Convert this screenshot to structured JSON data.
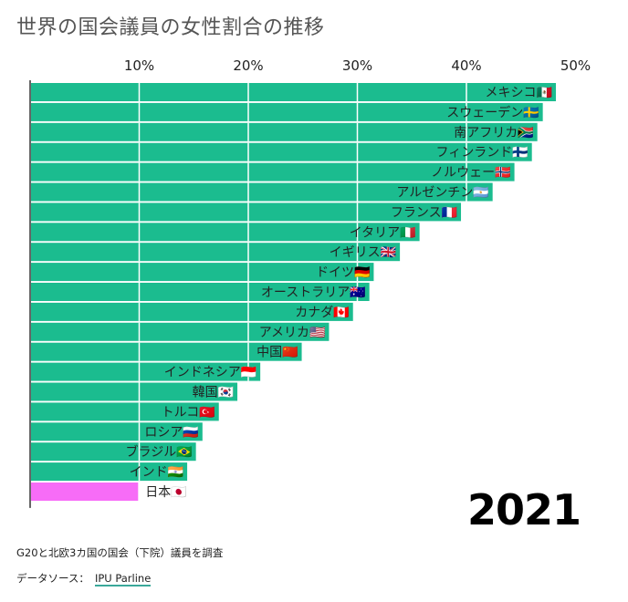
{
  "chart_data": {
    "type": "bar",
    "orientation": "horizontal",
    "title": "世界の国会議員の女性割合の推移",
    "xlabel": "",
    "ylabel": "",
    "xlim": [
      0,
      50
    ],
    "x_ticks": [
      "10%",
      "20%",
      "30%",
      "40%",
      "50%"
    ],
    "x_tick_values": [
      10,
      20,
      30,
      40,
      50
    ],
    "grid": true,
    "year_label": "2021",
    "colors": {
      "default": "#1bbc8f",
      "highlight": "#f76cf7",
      "grid": "#ffffff"
    },
    "categories": [
      "メキシコ",
      "スウェーデン",
      "南アフリカ",
      "フィンランド",
      "ノルウェー",
      "アルゼンチン",
      "フランス",
      "イタリア",
      "イギリス",
      "ドイツ",
      "オーストラリア",
      "カナダ",
      "アメリカ",
      "中国",
      "インドネシア",
      "韓国",
      "トルコ",
      "ロシア",
      "ブラジル",
      "インド",
      "日本"
    ],
    "flags": [
      "🇲🇽",
      "🇸🇪",
      "🇿🇦",
      "🇫🇮",
      "🇳🇴",
      "🇦🇷",
      "🇫🇷",
      "🇮🇹",
      "🇬🇧",
      "🇩🇪",
      "🇦🇺",
      "🇨🇦",
      "🇺🇸",
      "🇨🇳",
      "🇮🇩",
      "🇰🇷",
      "🇹🇷",
      "🇷🇺",
      "🇧🇷",
      "🇮🇳",
      "🇯🇵"
    ],
    "values": [
      48.2,
      47.0,
      46.5,
      46.0,
      44.4,
      42.4,
      39.5,
      35.7,
      33.9,
      31.5,
      31.1,
      29.6,
      27.4,
      24.9,
      21.1,
      19.0,
      17.3,
      15.8,
      15.2,
      14.4,
      9.9
    ],
    "highlight": "日本"
  },
  "footer": {
    "note": "G20と北欧3カ国の国会（下院）議員を調査",
    "source_label": "データソース：",
    "source_link": "IPU Parline"
  }
}
